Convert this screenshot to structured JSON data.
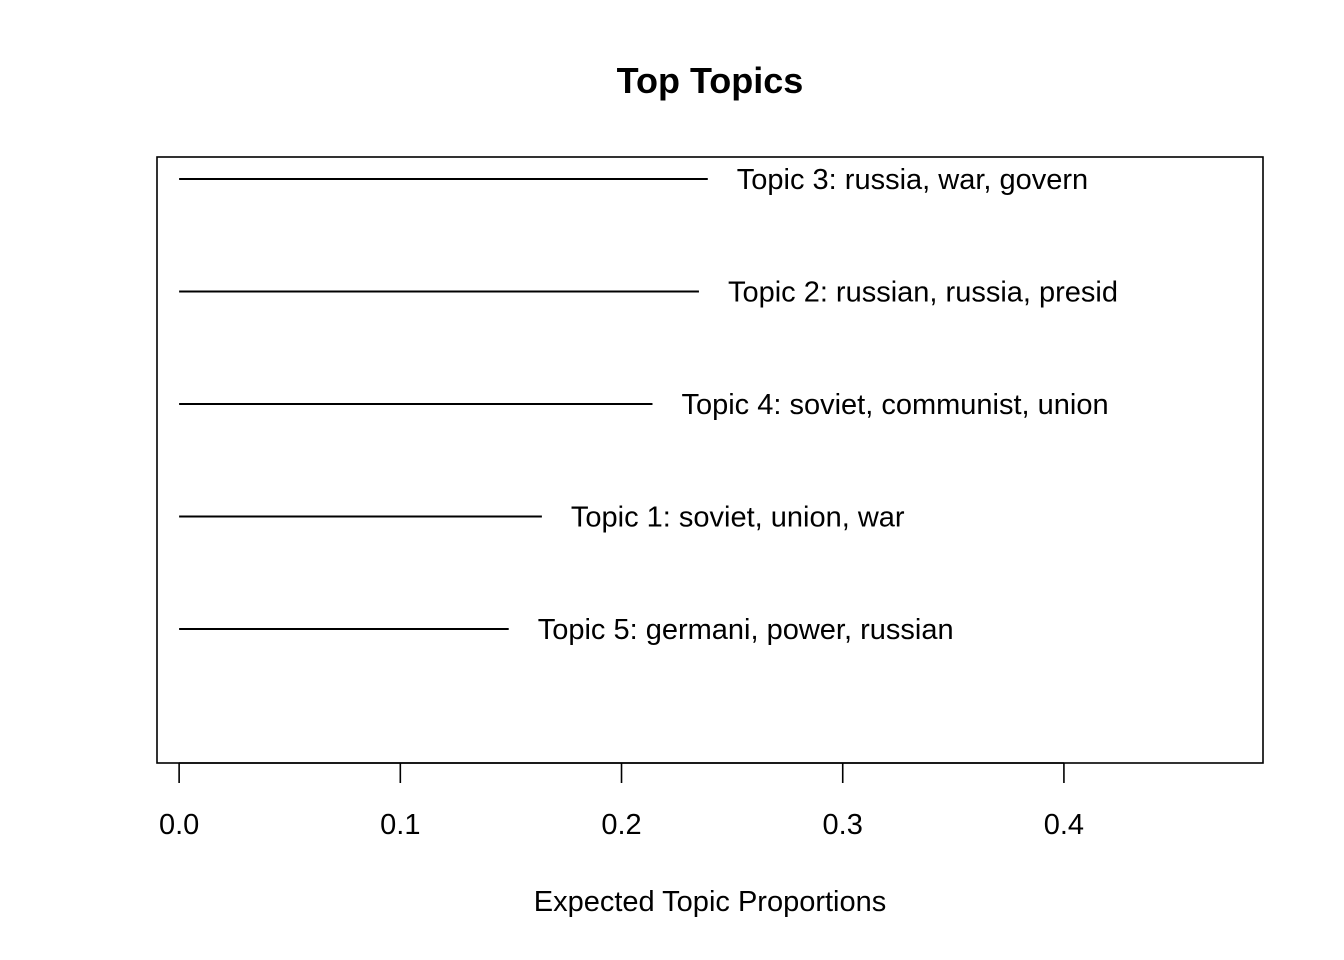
{
  "chart_data": {
    "type": "bar",
    "title": "Top Topics",
    "xlabel": "Expected Topic Proportions",
    "ylabel": "",
    "xlim": [
      -0.01,
      0.49
    ],
    "x_ticks": [
      0.0,
      0.1,
      0.2,
      0.3,
      0.4
    ],
    "x_tick_labels": [
      "0.0",
      "0.1",
      "0.2",
      "0.3",
      "0.4"
    ],
    "grid": false,
    "legend": "none",
    "items": [
      {
        "label": "Topic 3: russia, war, govern",
        "value": 0.239
      },
      {
        "label": "Topic 2: russian, russia, presid",
        "value": 0.235
      },
      {
        "label": "Topic 4: soviet, communist, union",
        "value": 0.214
      },
      {
        "label": "Topic 1: soviet, union, war",
        "value": 0.164
      },
      {
        "label": "Topic 5: germani, power, russian",
        "value": 0.149
      }
    ]
  }
}
